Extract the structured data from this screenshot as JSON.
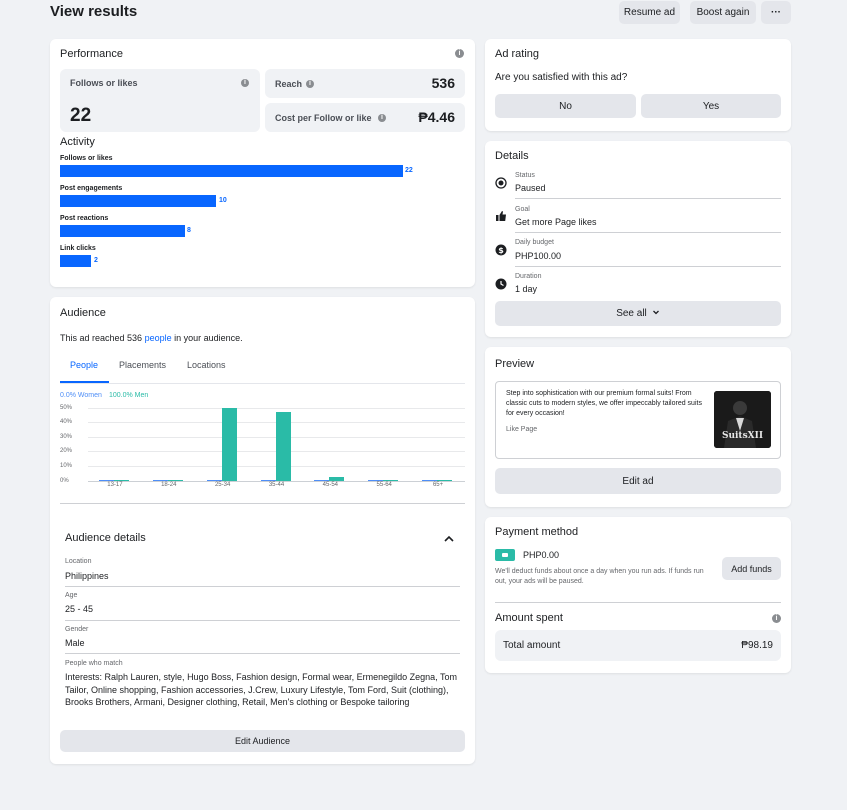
{
  "header": {
    "title": "View results",
    "resume_label": "Resume ad",
    "boost_label": "Boost again",
    "more_label": "···"
  },
  "performance": {
    "title": "Performance",
    "follows_label": "Follows or likes",
    "follows_value": "22",
    "reach_label": "Reach",
    "reach_value": "536",
    "cost_label": "Cost per Follow or like",
    "cost_value": "₱4.46",
    "activity_title": "Activity",
    "activity": [
      {
        "label": "Follows or likes",
        "value": 22
      },
      {
        "label": "Post engagements",
        "value": 10
      },
      {
        "label": "Post reactions",
        "value": 8
      },
      {
        "label": "Link clicks",
        "value": 2
      }
    ]
  },
  "audience": {
    "title": "Audience",
    "reached_pre": "This ad reached 536 ",
    "reached_link": "people",
    "reached_post": " in your audience.",
    "tabs": [
      "People",
      "Placements",
      "Locations"
    ],
    "legend_women": "0.0% Women",
    "legend_men": "100.0% Men",
    "chart_data": {
      "type": "bar",
      "categories": [
        "13-17",
        "18-24",
        "25-34",
        "35-44",
        "45-54",
        "55-64",
        "65+"
      ],
      "series": [
        {
          "name": "Women",
          "values": [
            0,
            0,
            0,
            0,
            0,
            0,
            0
          ],
          "color": "#4e8ef7"
        },
        {
          "name": "Men",
          "values": [
            0,
            0,
            50,
            47,
            3,
            0,
            0
          ],
          "color": "#2abba7"
        }
      ],
      "yticks": [
        "50%",
        "40%",
        "30%",
        "20%",
        "10%",
        "0%"
      ],
      "ylim": [
        0,
        50
      ]
    },
    "details_title": "Audience details",
    "location_label": "Location",
    "location_value": "Philippines",
    "age_label": "Age",
    "age_value": "25 - 45",
    "gender_label": "Gender",
    "gender_value": "Male",
    "match_label": "People who match",
    "match_value": "Interests: Ralph Lauren, style, Hugo Boss, Fashion design, Formal wear, Ermenegildo Zegna, Tom Tailor, Online shopping, Fashion accessories, J.Crew, Luxury Lifestyle, Tom Ford, Suit (clothing), Brooks Brothers, Armani, Designer clothing, Retail, Men's clothing or Bespoke tailoring",
    "edit_label": "Edit Audience"
  },
  "rating": {
    "title": "Ad rating",
    "question": "Are you satisfied with this ad?",
    "no_label": "No",
    "yes_label": "Yes"
  },
  "details": {
    "title": "Details",
    "status_label": "Status",
    "status_value": "Paused",
    "goal_label": "Goal",
    "goal_value": "Get more Page likes",
    "budget_label": "Daily budget",
    "budget_value": "PHP100.00",
    "duration_label": "Duration",
    "duration_value": "1 day",
    "see_all_label": "See all"
  },
  "preview": {
    "title": "Preview",
    "ad_text": "Step into sophistication with our premium formal suits! From classic cuts to modern styles, we offer impeccably tailored suits for every occasion!",
    "cta": "Like Page",
    "logo_text": "SuitsXII",
    "edit_label": "Edit ad"
  },
  "payment": {
    "title": "Payment method",
    "balance": "PHP0.00",
    "note": "We'll deduct funds about once a day when you run ads. If funds run out, your ads will be paused.",
    "add_funds_label": "Add funds",
    "spent_title": "Amount spent",
    "total_label": "Total amount",
    "total_value": "₱98.19"
  },
  "colors": {
    "accent": "#0866ff",
    "men": "#2abba7",
    "women": "#4e8ef7"
  }
}
